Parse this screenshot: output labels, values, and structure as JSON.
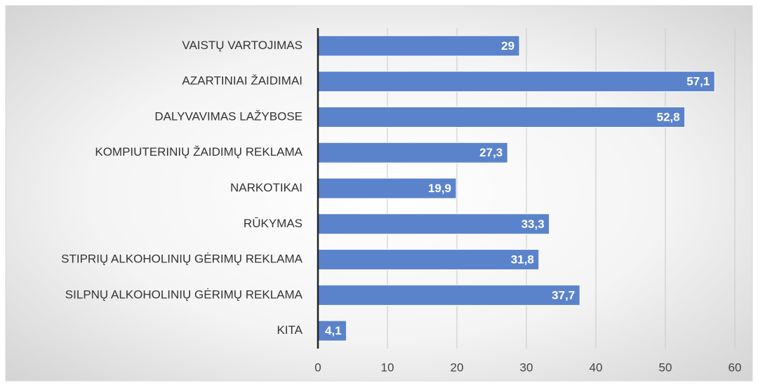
{
  "chart_data": {
    "type": "barh",
    "categories": [
      "VAISTŲ VARTOJIMAS",
      "AZARTINIAI ŽAIDIMAI",
      "DALYVAVIMAS LAŽYBOSE",
      "KOMPIUTERINIŲ ŽAIDIMŲ REKLAMA",
      "NARKOTIKAI",
      "RŪKYMAS",
      "STIPRIŲ ALKOHOLINIŲ GĖRIMŲ REKLAMA",
      "SILPNŲ ALKOHOLINIŲ GĖRIMŲ REKLAMA",
      "KITA"
    ],
    "values": [
      29,
      57.1,
      52.8,
      27.3,
      19.9,
      33.3,
      31.8,
      37.7,
      4.1
    ],
    "value_labels": [
      "29",
      "57,1",
      "52,8",
      "27,3",
      "19,9",
      "33,3",
      "31,8",
      "37,7",
      "4,1"
    ],
    "color": "#5b83cb",
    "xlim": [
      0,
      60
    ],
    "xticks": [
      0,
      10,
      20,
      30,
      40,
      50,
      60
    ],
    "grid": true
  }
}
